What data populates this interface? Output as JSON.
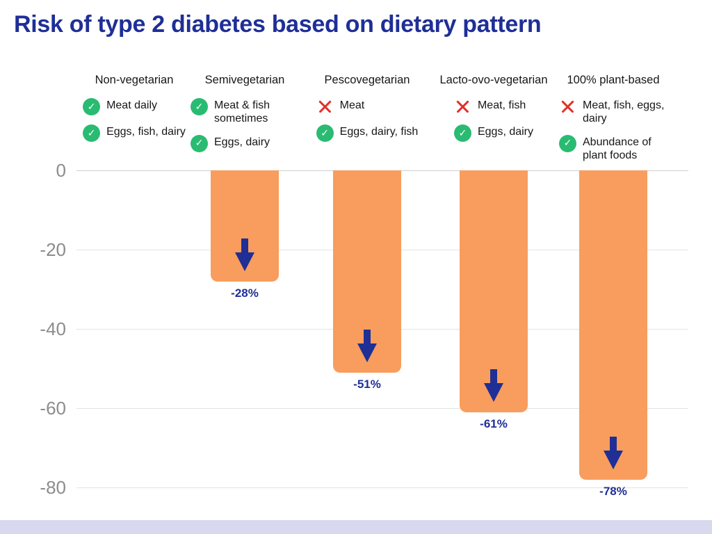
{
  "page": {
    "title": "Risk of type 2 diabetes based on dietary pattern"
  },
  "colors": {
    "title_navy": "#1f2f96",
    "bar_orange": "#f89d5d",
    "arrow_navy": "#1f2f96",
    "check_green": "#2abb72",
    "cross_red": "#e23028",
    "tick_gray": "#8c8c8c",
    "footer_band": "#d8d9ef"
  },
  "chart_data": {
    "type": "bar",
    "title": "Risk of type 2 diabetes based on dietary pattern",
    "categories": [
      "Non-vegetarian",
      "Semivegetarian",
      "Pescovegetarian",
      "Lacto-ovo-vegetarian",
      "100% plant-based"
    ],
    "values": [
      0,
      -28,
      -51,
      -61,
      -78
    ],
    "value_labels": [
      "",
      "-28%",
      "-51%",
      "-61%",
      "-78%"
    ],
    "xlabel": "",
    "ylabel": "",
    "ylim": [
      -80,
      0
    ],
    "yticks": [
      "0",
      "-20",
      "-40",
      "-60",
      "-80"
    ],
    "grid": true,
    "legend": "none",
    "bar_color": "#f89d5d",
    "columns": [
      {
        "label": "Non-vegetarian",
        "items": [
          {
            "icon": "check",
            "text": "Meat daily"
          },
          {
            "icon": "check",
            "text": "Eggs, fish, dairy"
          }
        ]
      },
      {
        "label": "Semivegetarian",
        "items": [
          {
            "icon": "check",
            "text": "Meat & fish sometimes"
          },
          {
            "icon": "check",
            "text": "Eggs, dairy"
          }
        ]
      },
      {
        "label": "Pescovegetarian",
        "items": [
          {
            "icon": "cross",
            "text": "Meat"
          },
          {
            "icon": "check",
            "text": "Eggs, dairy, fish"
          }
        ]
      },
      {
        "label": "Lacto-ovo-vegetarian",
        "items": [
          {
            "icon": "cross",
            "text": "Meat, fish"
          },
          {
            "icon": "check",
            "text": "Eggs, dairy"
          }
        ]
      },
      {
        "label": "100% plant-based",
        "items": [
          {
            "icon": "cross",
            "text": "Meat, fish, eggs, dairy"
          },
          {
            "icon": "check",
            "text": "Abundance of plant foods"
          }
        ]
      }
    ]
  }
}
